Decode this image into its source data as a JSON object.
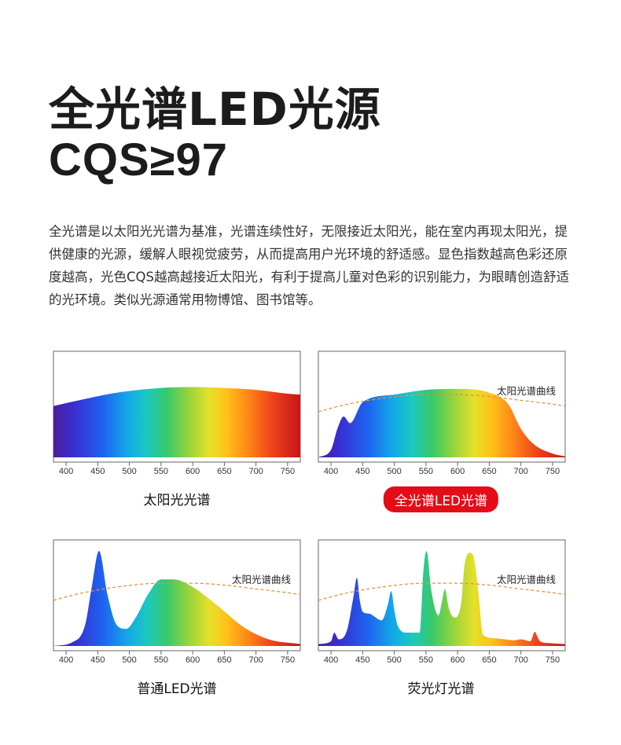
{
  "title": {
    "line1": "全光谱LED光源",
    "line2": "CQS≥97"
  },
  "description": "全光谱是以太阳光光谱为基准，光谱连续性好，无限接近太阳光，能在室内再现太阳光，提供健康的光源，缓解人眼视觉疲劳，从而提高用户光环境的舒适感。显色指数越高色彩还原度越高，光色CQS越高越接近太阳光，有利于提高儿童对色彩的识别能力，为眼睛创造舒适的光环境。类似光源通常用物博馆、图书馆等。",
  "colors": {
    "highlight": "#e40c16",
    "reference_curve": "#e8913e",
    "frame": "#666666"
  },
  "chart_data": [
    {
      "type": "area",
      "caption": "太阳光光谱",
      "highlighted": false,
      "xlim": [
        380,
        770
      ],
      "ylim": [
        0,
        1
      ],
      "x_ticks": [
        400,
        450,
        500,
        550,
        600,
        650,
        700,
        750
      ],
      "reference_label": "",
      "spectrum": {
        "x": [
          380,
          420,
          480,
          550,
          600,
          650,
          700,
          750,
          770
        ],
        "y": [
          0.54,
          0.6,
          0.68,
          0.73,
          0.74,
          0.73,
          0.71,
          0.67,
          0.66
        ]
      },
      "reference_curve": null
    },
    {
      "type": "area",
      "caption": "全光谱LED光谱",
      "highlighted": true,
      "xlim": [
        380,
        770
      ],
      "ylim": [
        0,
        1
      ],
      "x_ticks": [
        400,
        450,
        500,
        550,
        600,
        650,
        700,
        750
      ],
      "reference_label": "太阳光谱曲线",
      "spectrum": {
        "x": [
          380,
          400,
          410,
          420,
          430,
          450,
          500,
          550,
          600,
          650,
          680,
          700,
          720,
          750,
          770
        ],
        "y": [
          0,
          0.08,
          0.3,
          0.43,
          0.36,
          0.58,
          0.66,
          0.71,
          0.72,
          0.68,
          0.56,
          0.3,
          0.14,
          0.04,
          0.01
        ]
      },
      "reference_curve": {
        "x": [
          380,
          420,
          480,
          550,
          600,
          650,
          700,
          750,
          770
        ],
        "y": [
          0.48,
          0.55,
          0.62,
          0.66,
          0.66,
          0.64,
          0.6,
          0.56,
          0.54
        ]
      }
    },
    {
      "type": "area",
      "caption": "普通LED光谱",
      "highlighted": false,
      "xlim": [
        380,
        770
      ],
      "ylim": [
        0,
        1
      ],
      "x_ticks": [
        400,
        450,
        500,
        550,
        600,
        650,
        700,
        750
      ],
      "reference_label": "太阳光谱曲线",
      "spectrum": {
        "x": [
          380,
          410,
          430,
          440,
          452,
          465,
          480,
          495,
          510,
          530,
          550,
          570,
          600,
          640,
          680,
          720,
          770
        ],
        "y": [
          0,
          0.04,
          0.22,
          0.6,
          1.0,
          0.55,
          0.22,
          0.18,
          0.3,
          0.55,
          0.7,
          0.7,
          0.62,
          0.42,
          0.2,
          0.07,
          0.02
        ]
      },
      "reference_curve": {
        "x": [
          380,
          420,
          480,
          550,
          600,
          650,
          700,
          750,
          770
        ],
        "y": [
          0.48,
          0.55,
          0.62,
          0.66,
          0.66,
          0.64,
          0.6,
          0.56,
          0.54
        ]
      }
    },
    {
      "type": "area",
      "caption": "荧光灯光谱",
      "highlighted": false,
      "xlim": [
        380,
        770
      ],
      "ylim": [
        0,
        1
      ],
      "x_ticks": [
        400,
        450,
        500,
        550,
        600,
        650,
        700,
        750
      ],
      "reference_label": "太阳光谱曲线",
      "spectrum": {
        "x": [
          380,
          400,
          405,
          412,
          425,
          435,
          441,
          445,
          450,
          460,
          480,
          490,
          495,
          500,
          505,
          520,
          540,
          546,
          551,
          558,
          570,
          575,
          580,
          586,
          595,
          605,
          611,
          620,
          626,
          633,
          640,
          660,
          690,
          700,
          715,
          722,
          726,
          730,
          745,
          770
        ],
        "y": [
          0.02,
          0.05,
          0.14,
          0.07,
          0.16,
          0.5,
          0.72,
          0.5,
          0.36,
          0.34,
          0.27,
          0.44,
          0.58,
          0.38,
          0.22,
          0.14,
          0.14,
          0.8,
          1.0,
          0.6,
          0.32,
          0.46,
          0.6,
          0.4,
          0.3,
          0.42,
          0.85,
          0.98,
          0.92,
          0.55,
          0.12,
          0.08,
          0.06,
          0.07,
          0.05,
          0.15,
          0.1,
          0.05,
          0.03,
          0.02
        ]
      },
      "reference_curve": {
        "x": [
          380,
          420,
          480,
          550,
          600,
          650,
          700,
          750,
          770
        ],
        "y": [
          0.48,
          0.55,
          0.62,
          0.66,
          0.66,
          0.64,
          0.6,
          0.56,
          0.54
        ]
      }
    }
  ]
}
